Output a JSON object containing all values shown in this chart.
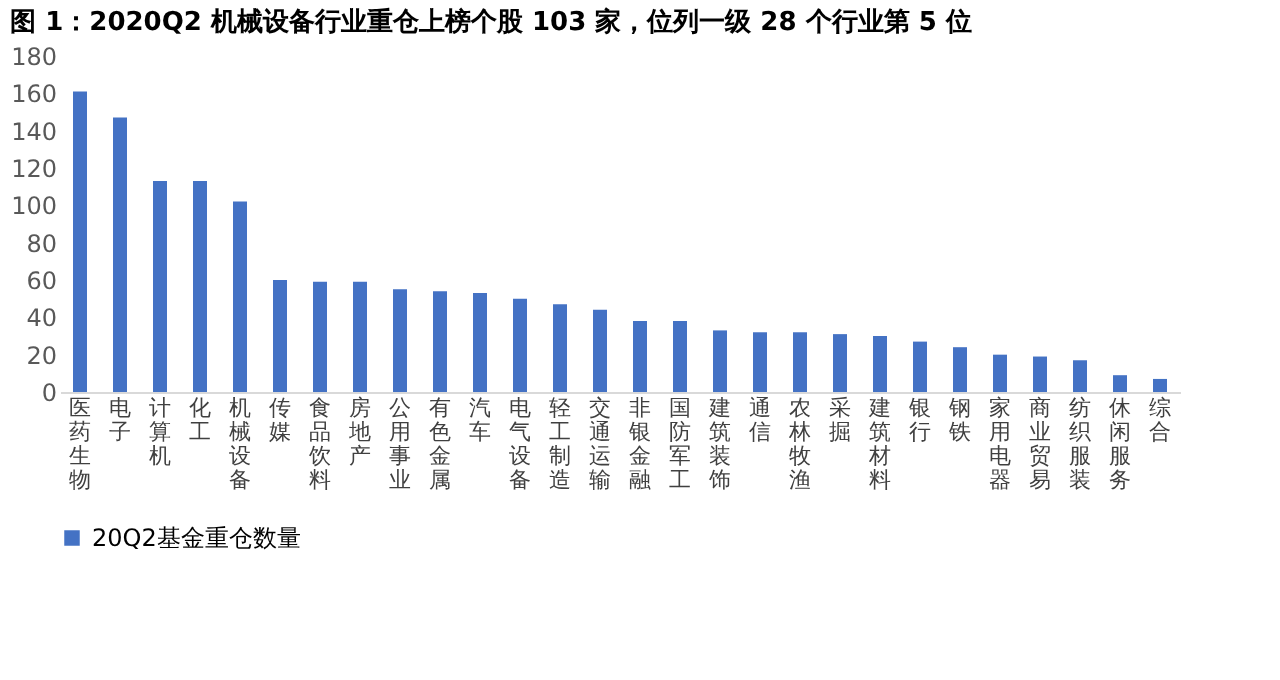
{
  "chart_data": {
    "type": "bar",
    "title": "图 1：2020Q2 机械设备行业重仓上榜个股 103 家，位列一级 28 个行业第 5 位",
    "categories": [
      "医药生物",
      "电子",
      "计算机",
      "化工",
      "机械设备",
      "传媒",
      "食品饮料",
      "房地产",
      "公用事业",
      "有色金属",
      "汽车",
      "电气设备",
      "轻工制造",
      "交通运输",
      "非银金融",
      "国防军工",
      "建筑装饰",
      "通信",
      "农林牧渔",
      "采掘",
      "建筑材料",
      "银行",
      "钢铁",
      "家用电器",
      "商业贸易",
      "纺织服装",
      "休闲服务",
      "综合"
    ],
    "series": [
      {
        "name": "20Q2基金重仓数量",
        "color": "#4472c4",
        "values": [
          161,
          147,
          113,
          113,
          102,
          60,
          59,
          59,
          55,
          54,
          53,
          50,
          47,
          44,
          38,
          38,
          33,
          32,
          32,
          31,
          30,
          27,
          24,
          20,
          19,
          17,
          9,
          7
        ]
      }
    ],
    "ylim": [
      0,
      180
    ],
    "yticks": [
      0,
      20,
      40,
      60,
      80,
      100,
      120,
      140,
      160,
      180
    ],
    "grid": false,
    "legend": "bottom"
  }
}
